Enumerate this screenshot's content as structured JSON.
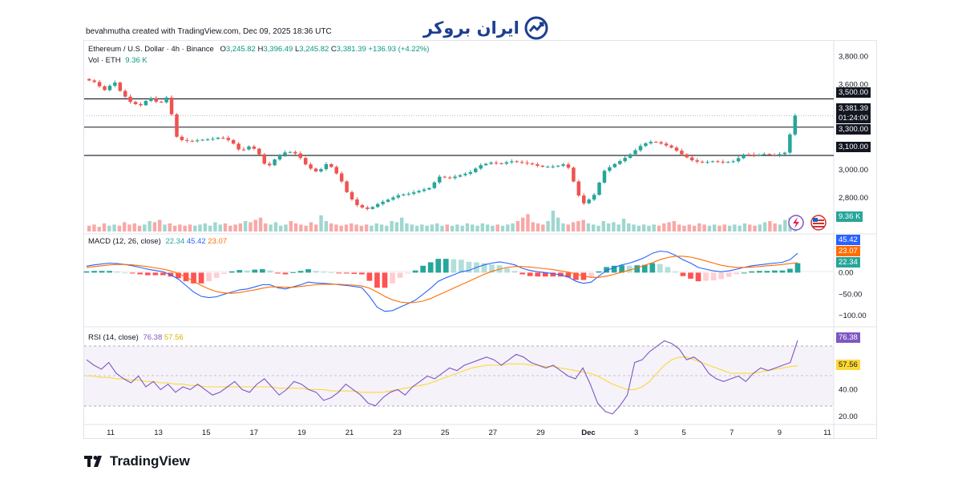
{
  "header": {
    "attribution": "bevahmutha created with TradingView.com, Dec 09, 2025 18:36 UTC",
    "brand_name": "ایران بروکر"
  },
  "legend": {
    "symbol": "Ethereum / U.S. Dollar · 4h · Binance",
    "open_label": "O",
    "open": "3,245.82",
    "high_label": "H",
    "high": "3,396.49",
    "low_label": "L",
    "low": "3,245.82",
    "close_label": "C",
    "close": "3,381.39",
    "change": "+136.93 (+4.22%)",
    "volume_label": "Vol · ETH",
    "volume": "9.36 K",
    "macd_label": "MACD (12, 26, close)",
    "macd_hist": "22.34",
    "macd_line": "45.42",
    "macd_signal": "23.07",
    "rsi_label": "RSI (14, close)",
    "rsi_value": "76.38",
    "rsi_ma": "57.56"
  },
  "footer": {
    "logo_text": "TradingView"
  },
  "colors": {
    "up": "#26a69a",
    "down": "#ef5350",
    "up_text": "#089981",
    "macd_line": "#2962ff",
    "macd_signal": "#ff6d00",
    "rsi_line": "#7e57c2",
    "rsi_ma": "#fdd835",
    "vol_up": "#9fd7cf",
    "vol_down": "#f7a9a7",
    "hist_up_strong": "#26a69a",
    "hist_up_weak": "#b2dfdb",
    "hist_down_strong": "#ff5252",
    "hist_down_weak": "#ffcdd2"
  },
  "chart_data": [
    {
      "type": "candlestick",
      "title": "Ethereum / U.S. Dollar · 4h · Binance",
      "ylim": [
        2580,
        3870
      ],
      "yticks": [
        "3,800.00",
        "3,600.00",
        "3,000.00",
        "2,800.00"
      ],
      "ytick_values": [
        3800,
        3600,
        3000,
        2800
      ],
      "xticks": [
        "11",
        "13",
        "15",
        "17",
        "19",
        "21",
        "23",
        "25",
        "27",
        "29",
        "Dec",
        "3",
        "5",
        "7",
        "9",
        "11"
      ],
      "horizontal_levels": [
        {
          "label": "3,500.00",
          "value": 3500
        },
        {
          "label": "3,300.00",
          "value": 3300
        },
        {
          "label": "3,100.00",
          "value": 3100
        }
      ],
      "last_price": {
        "label": "3,381.39",
        "countdown": "01:24:00",
        "value": 3381.39
      },
      "price_path": [
        [
          0,
          3640
        ],
        [
          2,
          3620
        ],
        [
          4,
          3560
        ],
        [
          6,
          3620
        ],
        [
          7,
          3560
        ],
        [
          9,
          3480
        ],
        [
          11,
          3450
        ],
        [
          13,
          3510
        ],
        [
          15,
          3460
        ],
        [
          16,
          3530
        ],
        [
          17,
          3440
        ],
        [
          18,
          3240
        ],
        [
          19,
          3210
        ],
        [
          21,
          3200
        ],
        [
          23,
          3210
        ],
        [
          25,
          3215
        ],
        [
          27,
          3230
        ],
        [
          29,
          3200
        ],
        [
          31,
          3120
        ],
        [
          32,
          3170
        ],
        [
          34,
          3140
        ],
        [
          36,
          3010
        ],
        [
          38,
          3090
        ],
        [
          40,
          3130
        ],
        [
          42,
          3110
        ],
        [
          44,
          3020
        ],
        [
          46,
          2980
        ],
        [
          48,
          3050
        ],
        [
          50,
          2960
        ],
        [
          51,
          2900
        ],
        [
          52,
          2820
        ],
        [
          54,
          2740
        ],
        [
          56,
          2720
        ],
        [
          58,
          2760
        ],
        [
          60,
          2790
        ],
        [
          62,
          2820
        ],
        [
          64,
          2830
        ],
        [
          66,
          2850
        ],
        [
          68,
          2870
        ],
        [
          70,
          2950
        ],
        [
          72,
          2940
        ],
        [
          74,
          2960
        ],
        [
          76,
          2980
        ],
        [
          78,
          3030
        ],
        [
          80,
          3050
        ],
        [
          82,
          3040
        ],
        [
          84,
          3060
        ],
        [
          86,
          3050
        ],
        [
          88,
          3040
        ],
        [
          90,
          3020
        ],
        [
          92,
          3020
        ],
        [
          94,
          3030
        ],
        [
          95,
          3050
        ],
        [
          96,
          2950
        ],
        [
          97,
          2860
        ],
        [
          98,
          2750
        ],
        [
          99,
          2780
        ],
        [
          100,
          2800
        ],
        [
          101,
          2850
        ],
        [
          102,
          2980
        ],
        [
          104,
          3030
        ],
        [
          106,
          3070
        ],
        [
          108,
          3120
        ],
        [
          110,
          3180
        ],
        [
          112,
          3200
        ],
        [
          114,
          3180
        ],
        [
          116,
          3150
        ],
        [
          118,
          3100
        ],
        [
          120,
          3060
        ],
        [
          122,
          3050
        ],
        [
          124,
          3060
        ],
        [
          126,
          3050
        ],
        [
          128,
          3060
        ],
        [
          130,
          3110
        ],
        [
          132,
          3100
        ],
        [
          134,
          3110
        ],
        [
          136,
          3100
        ],
        [
          138,
          3120
        ],
        [
          139,
          3250
        ],
        [
          140,
          3381.39
        ]
      ],
      "volume_bars": [
        5,
        6,
        4,
        7,
        5,
        6,
        5,
        8,
        6,
        7,
        5,
        6,
        9,
        8,
        10,
        6,
        7,
        5,
        6,
        5,
        6,
        5,
        6,
        7,
        5,
        8,
        6,
        7,
        5,
        6,
        7,
        9,
        8,
        10,
        12,
        7,
        6,
        8,
        5,
        6,
        9,
        7,
        6,
        5,
        8,
        6,
        14,
        9,
        7,
        6,
        5,
        6,
        7,
        6,
        5,
        6,
        5,
        7,
        6,
        5,
        9,
        8,
        12,
        7,
        6,
        5,
        6,
        5,
        6,
        7,
        5,
        6,
        5,
        6,
        5,
        7,
        6,
        5,
        7,
        6,
        5,
        6,
        5,
        6,
        7,
        9,
        12,
        15,
        8,
        7,
        6,
        9,
        18,
        12,
        7,
        6,
        8,
        9,
        10,
        7,
        6,
        5,
        9,
        7,
        8,
        6,
        11,
        7,
        6,
        5,
        6,
        5,
        6,
        5,
        7,
        8,
        9,
        6,
        5,
        6,
        5,
        7,
        6,
        5,
        6,
        5,
        6,
        5,
        6,
        5,
        7,
        6,
        5,
        6,
        8,
        9,
        7,
        6,
        10,
        12,
        8
      ],
      "volume_value": "9.36 K"
    },
    {
      "type": "line",
      "title": "MACD (12, 26, close)",
      "ylim": [
        -120,
        75
      ],
      "yticks": [
        "0.00",
        "−50.00",
        "−100.00"
      ],
      "ytick_values": [
        0,
        -50,
        -100
      ],
      "series": [
        {
          "name": "MACD",
          "values": [
            15,
            18,
            20,
            22,
            21,
            19,
            16,
            12,
            8,
            5,
            2,
            -5,
            -15,
            -30,
            -45,
            -55,
            -58,
            -56,
            -50,
            -45,
            -40,
            -38,
            -33,
            -28,
            -28,
            -35,
            -38,
            -33,
            -28,
            -22,
            -24,
            -25,
            -26,
            -28,
            -30,
            -32,
            -35,
            -55,
            -80,
            -90,
            -88,
            -80,
            -72,
            -64,
            -50,
            -36,
            -20,
            -12,
            -5,
            2,
            5,
            12,
            18,
            22,
            25,
            22,
            18,
            10,
            5,
            2,
            0,
            -2,
            -5,
            -10,
            -20,
            -25,
            -22,
            -8,
            5,
            12,
            18,
            22,
            28,
            35,
            45,
            50,
            48,
            40,
            30,
            22,
            12,
            8,
            4,
            2,
            4,
            8,
            12,
            16,
            18,
            20,
            22,
            24,
            30,
            45
          ]
        },
        {
          "name": "Signal",
          "values": [
            12,
            14,
            16,
            18,
            19,
            19,
            18,
            16,
            14,
            11,
            8,
            4,
            -2,
            -10,
            -20,
            -30,
            -38,
            -44,
            -47,
            -48,
            -46,
            -43,
            -40,
            -36,
            -33,
            -33,
            -34,
            -34,
            -32,
            -30,
            -28,
            -27,
            -27,
            -27,
            -28,
            -29,
            -31,
            -36,
            -45,
            -55,
            -63,
            -68,
            -70,
            -69,
            -66,
            -60,
            -52,
            -44,
            -36,
            -28,
            -20,
            -12,
            -4,
            3,
            8,
            12,
            14,
            14,
            13,
            11,
            9,
            7,
            4,
            1,
            -3,
            -8,
            -11,
            -11,
            -8,
            -4,
            1,
            6,
            11,
            17,
            23,
            30,
            35,
            38,
            38,
            36,
            32,
            27,
            22,
            17,
            14,
            12,
            12,
            13,
            14,
            16,
            17,
            19,
            21,
            23.07
          ]
        }
      ],
      "hist_values": [
        22.34
      ],
      "last_values": {
        "macd": "45.42",
        "signal": "23.07",
        "hist": "22.34"
      }
    },
    {
      "type": "line",
      "title": "RSI (14, close)",
      "ylim": [
        16,
        84
      ],
      "yticks": [
        "80.00",
        "60.00",
        "40.00",
        "20.00"
      ],
      "ytick_values": [
        80,
        60,
        40,
        20
      ],
      "band": [
        30,
        70
      ],
      "series": [
        {
          "name": "RSI",
          "values": [
            62,
            58,
            55,
            60,
            52,
            48,
            45,
            50,
            42,
            46,
            40,
            44,
            38,
            42,
            40,
            44,
            40,
            36,
            38,
            42,
            46,
            40,
            38,
            44,
            48,
            42,
            36,
            40,
            46,
            44,
            40,
            38,
            32,
            34,
            38,
            44,
            40,
            36,
            30,
            28,
            34,
            38,
            40,
            36,
            42,
            46,
            50,
            48,
            52,
            56,
            54,
            58,
            60,
            62,
            64,
            62,
            58,
            62,
            66,
            64,
            60,
            58,
            56,
            58,
            54,
            50,
            48,
            56,
            44,
            30,
            24,
            22,
            28,
            36,
            60,
            62,
            68,
            72,
            76,
            74,
            70,
            62,
            64,
            60,
            52,
            48,
            46,
            48,
            50,
            46,
            52,
            56,
            54,
            56,
            58,
            60,
            76.38
          ]
        },
        {
          "name": "MA",
          "values": [
            50,
            50,
            49,
            49,
            48,
            48,
            47,
            47,
            46,
            46,
            45,
            45,
            44,
            44,
            43,
            43,
            42,
            42,
            42,
            42,
            42,
            42,
            42,
            42,
            42,
            42,
            41,
            41,
            41,
            41,
            40,
            40,
            40,
            39,
            39,
            39,
            39,
            38,
            38,
            38,
            38,
            39,
            40,
            41,
            42,
            43,
            44,
            46,
            48,
            50,
            52,
            54,
            56,
            57,
            58,
            58,
            58,
            59,
            59,
            59,
            58,
            58,
            57,
            57,
            56,
            55,
            54,
            53,
            52,
            50,
            47,
            44,
            42,
            40,
            40,
            42,
            46,
            52,
            58,
            62,
            64,
            64,
            62,
            60,
            58,
            56,
            54,
            52,
            52,
            52,
            52,
            53,
            54,
            55,
            56,
            57,
            57.56
          ]
        }
      ],
      "last_values": {
        "rsi": "76.38",
        "ma": "57.56"
      }
    }
  ]
}
